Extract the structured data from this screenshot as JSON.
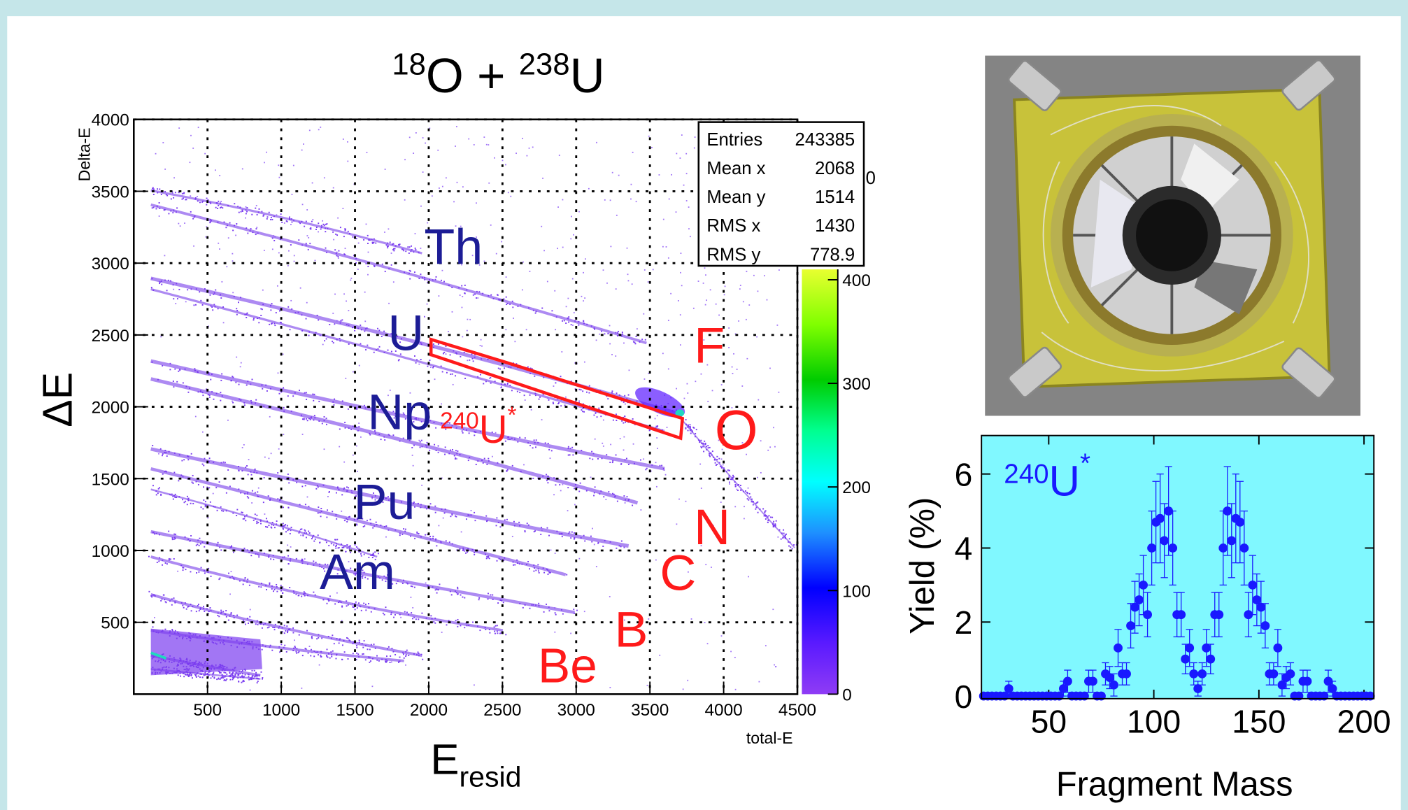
{
  "chart_data": [
    {
      "type": "histogram2d",
      "title_parts": [
        "18",
        "O + ",
        "238",
        "U"
      ],
      "xlabel_parts": [
        "E",
        "resid"
      ],
      "ylabel": "ΔE",
      "x_axis_name": "total-E",
      "y_axis_name": "Delta-E",
      "xlim": [
        0,
        4500
      ],
      "ylim": [
        0,
        4000
      ],
      "xticks": [
        500,
        1000,
        1500,
        2000,
        2500,
        3000,
        3500,
        4000,
        4500
      ],
      "yticks": [
        500,
        1000,
        1500,
        2000,
        2500,
        3000,
        3500,
        4000
      ],
      "grid": true,
      "zlim": [
        0,
        410
      ],
      "zticks": [
        0,
        100,
        200,
        300,
        400
      ],
      "z_label": "0",
      "stats": {
        "labels": [
          "Entries",
          "Mean x",
          "Mean y",
          "RMS x",
          "RMS y"
        ],
        "values": [
          243385,
          2068,
          1514,
          1430,
          778.9
        ]
      },
      "annotations": [
        {
          "text": "Th",
          "color": "#1c1c96"
        },
        {
          "text": "U",
          "color": "#1c1c96"
        },
        {
          "text": "Np",
          "color": "#1c1c96"
        },
        {
          "text": "Pu",
          "color": "#1c1c96"
        },
        {
          "text": "Am",
          "color": "#1c1c96"
        },
        {
          "text": "F",
          "color": "#ff1a1a"
        },
        {
          "text": "O",
          "color": "#ff1a1a"
        },
        {
          "text": "N",
          "color": "#ff1a1a"
        },
        {
          "text": "C",
          "color": "#ff1a1a"
        },
        {
          "text": "B",
          "color": "#ff1a1a"
        },
        {
          "text": "Be",
          "color": "#ff1a1a"
        }
      ],
      "gate_label": {
        "parts": [
          "240",
          "U",
          "*"
        ],
        "color": "#ff1a1a"
      }
    },
    {
      "type": "errorbar",
      "xlabel": "Fragment Mass",
      "ylabel": "Yield (%)",
      "label_parts": [
        "240",
        "U",
        "*"
      ],
      "background": "#80f8ff",
      "xlim": [
        18,
        204.7
      ],
      "ylim": [
        -0.07,
        7.04
      ],
      "xticks": [
        50,
        100,
        150,
        200
      ],
      "yticks": [
        0,
        2,
        4,
        6
      ],
      "series": [
        {
          "color": "#1919ff",
          "x": [
            19,
            21,
            23,
            25,
            27,
            29,
            31,
            33,
            35,
            37,
            39,
            41,
            43,
            45,
            47,
            49,
            51,
            53,
            55,
            57,
            59,
            61,
            63,
            65,
            67,
            69,
            71,
            73,
            75,
            77,
            79,
            81,
            83,
            85,
            87,
            89,
            91,
            93,
            95,
            97,
            99,
            101,
            103,
            105,
            107,
            109,
            111,
            113,
            115,
            117,
            119,
            121,
            123,
            125,
            127,
            129,
            131,
            133,
            135,
            137,
            139,
            141,
            143,
            145,
            147,
            149,
            151,
            153,
            155,
            157,
            159,
            161,
            163,
            165,
            167,
            169,
            171,
            173,
            175,
            177,
            179,
            181,
            183,
            185,
            187,
            189,
            191,
            193,
            195,
            197,
            199,
            201,
            203
          ],
          "values": [
            0,
            0,
            0,
            0,
            0,
            0,
            0.2,
            0,
            0,
            0,
            0,
            0,
            0,
            0,
            0,
            0,
            0,
            0,
            0,
            0.2,
            0.4,
            0,
            0,
            0,
            0,
            0.4,
            0.4,
            0,
            0,
            0.6,
            0.5,
            0.3,
            1.3,
            0.6,
            0.6,
            1.9,
            2.4,
            2.6,
            3.0,
            2.2,
            4.0,
            4.7,
            4.8,
            4.2,
            5.0,
            4.0,
            2.2,
            2.2,
            1.0,
            1.3,
            0.6,
            0.2,
            0.6,
            1.3,
            1.0,
            2.2,
            2.2,
            4.0,
            5.0,
            4.2,
            4.8,
            4.7,
            4.0,
            2.2,
            3.0,
            2.6,
            2.4,
            1.9,
            0.6,
            0.6,
            1.3,
            0.3,
            0.5,
            0.6,
            0,
            0,
            0.4,
            0.4,
            0,
            0,
            0,
            0,
            0.4,
            0.2,
            0,
            0,
            0,
            0,
            0,
            0,
            0,
            0,
            0
          ],
          "errors": [
            0,
            0,
            0,
            0,
            0,
            0,
            0.2,
            0,
            0,
            0,
            0,
            0,
            0,
            0,
            0,
            0,
            0,
            0,
            0,
            0.2,
            0.3,
            0,
            0,
            0,
            0,
            0.3,
            0.3,
            0,
            0,
            0.3,
            0.3,
            0.3,
            0.5,
            0.3,
            0.3,
            0.6,
            0.7,
            0.7,
            0.8,
            0.6,
            1.0,
            1.1,
            1.2,
            1.0,
            1.2,
            1.0,
            0.6,
            0.6,
            0.4,
            0.5,
            0.3,
            0.2,
            0.3,
            0.5,
            0.4,
            0.6,
            0.6,
            1.0,
            1.2,
            1.0,
            1.2,
            1.1,
            1.0,
            0.6,
            0.8,
            0.7,
            0.7,
            0.6,
            0.3,
            0.3,
            0.5,
            0.3,
            0.3,
            0.3,
            0,
            0,
            0.3,
            0.3,
            0,
            0,
            0,
            0,
            0.3,
            0.2,
            0,
            0,
            0,
            0,
            0,
            0,
            0,
            0,
            0
          ]
        }
      ]
    }
  ]
}
